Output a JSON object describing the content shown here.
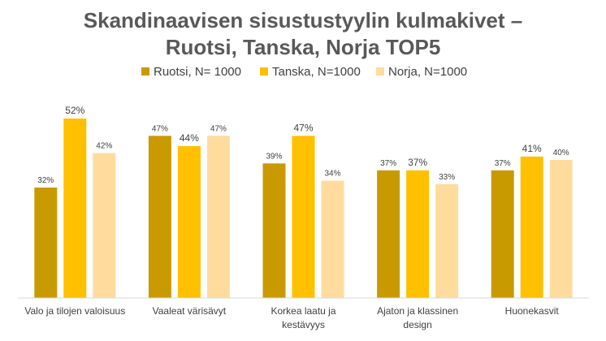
{
  "chart_data": {
    "type": "bar",
    "title": [
      "Skandinaavisen sisustustyylin kulmakivet –",
      "Ruotsi, Tanska, Norja TOP5"
    ],
    "categories": [
      [
        "Valo ja tilojen valoisuus"
      ],
      [
        "Vaaleat värisävyt"
      ],
      [
        "Korkea laatu ja",
        "kestävyys"
      ],
      [
        "Ajaton ja klassinen",
        "design"
      ],
      [
        "Huonekasvit"
      ]
    ],
    "series": [
      {
        "name": "Ruotsi, N= 1000",
        "color": "#C99A00",
        "values": [
          32,
          47,
          39,
          37,
          37
        ],
        "labels": [
          "32%",
          "47%",
          "39%",
          "37%",
          "37%"
        ]
      },
      {
        "name": "Tanska, N=1000",
        "color": "#FFC000",
        "values": [
          52,
          44,
          47,
          37,
          41
        ],
        "labels": [
          "52%",
          "44%",
          "47%",
          "37%",
          "41%"
        ]
      },
      {
        "name": "Norja, N=1000",
        "color": "#FFDC9E",
        "values": [
          42,
          47,
          34,
          33,
          40
        ],
        "labels": [
          "42%",
          "47%",
          "34%",
          "33%",
          "40%"
        ]
      }
    ],
    "ylim": [
      0,
      60
    ],
    "grid": false,
    "legend": "top-center",
    "xlabel": "",
    "ylabel": ""
  }
}
